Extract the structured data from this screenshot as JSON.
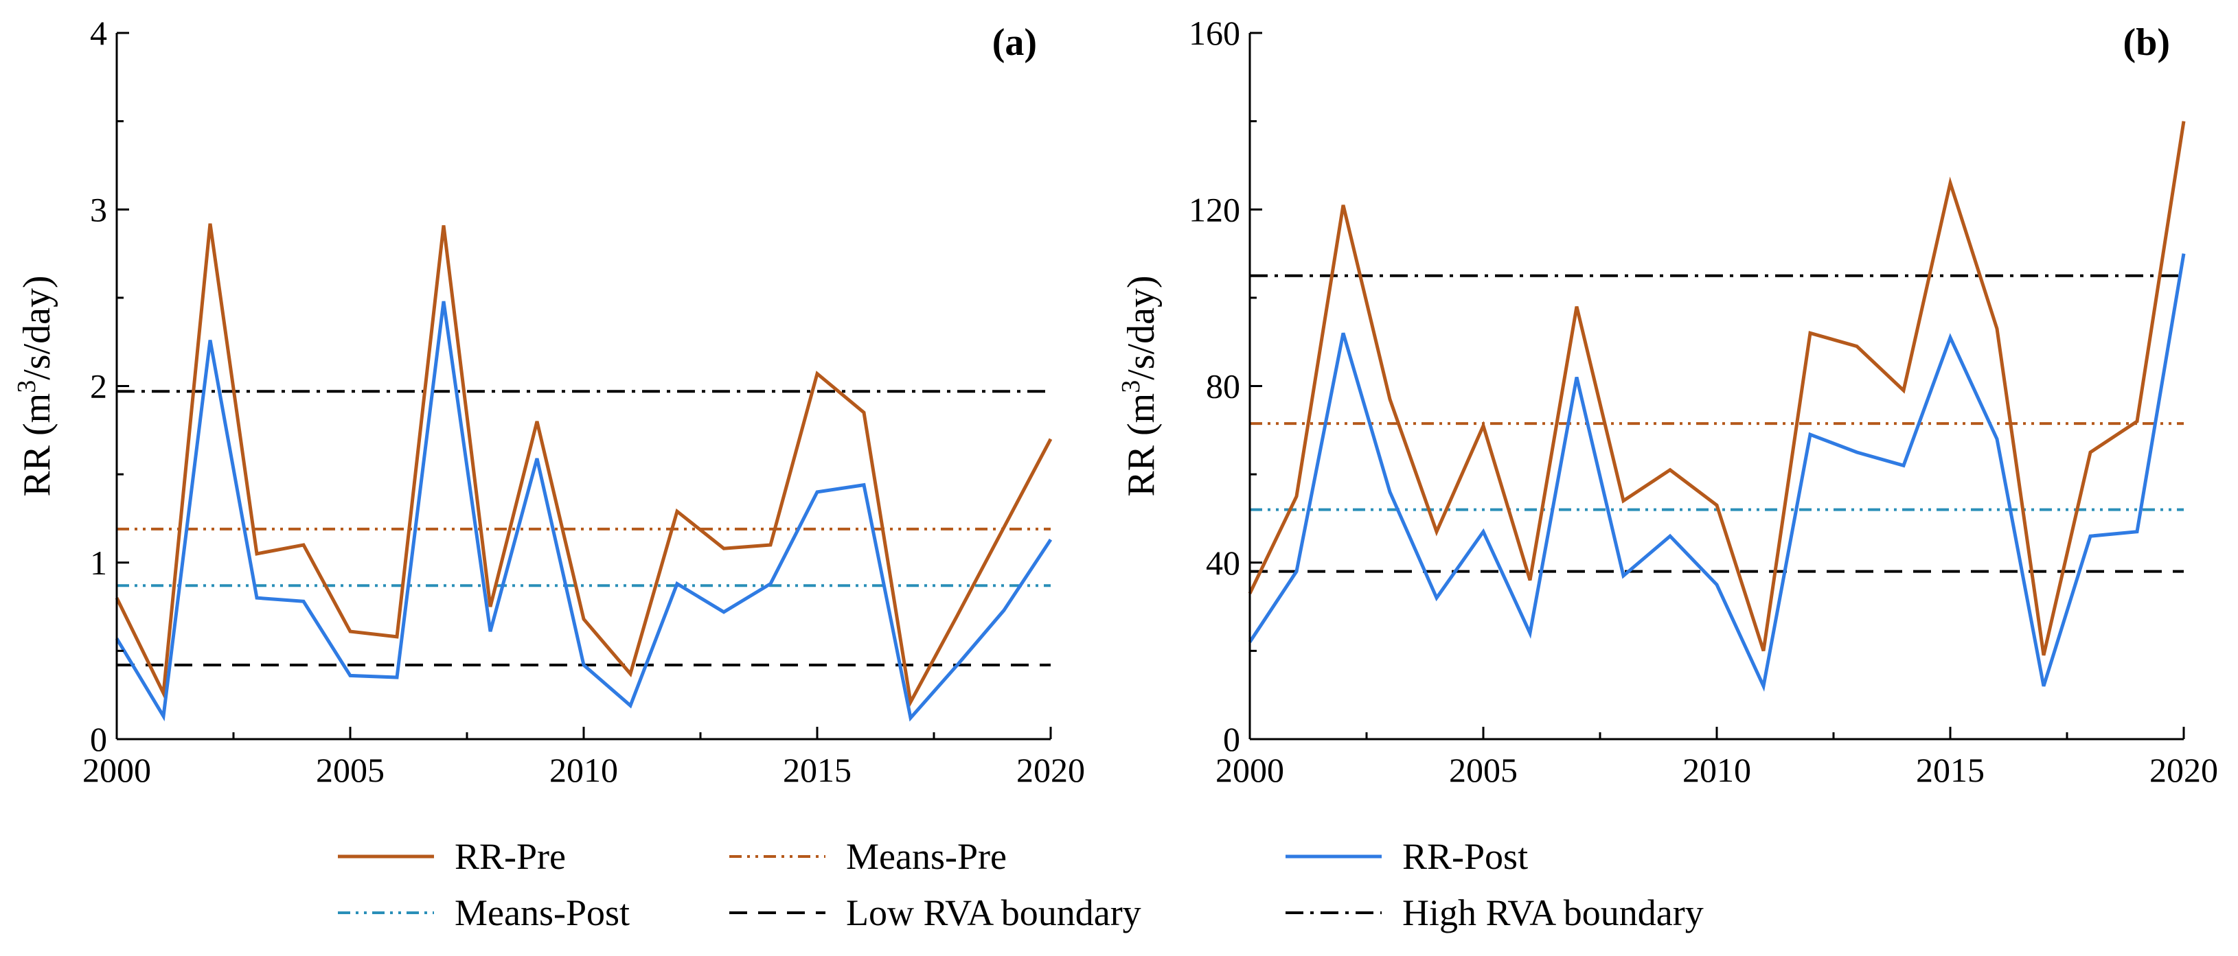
{
  "colors": {
    "rr_pre": "#b5591b",
    "means_pre": "#b5591b",
    "rr_post": "#2f7be3",
    "means_post": "#2a8fb8",
    "low_rva": "#000000",
    "high_rva": "#000000"
  },
  "legend": {
    "rr_pre": "RR-Pre",
    "means_pre": "Means-Pre",
    "rr_post": "RR-Post",
    "means_post": "Means-Post",
    "low_rva": "Low RVA boundary",
    "high_rva": "High RVA boundary"
  },
  "chart_data": [
    {
      "type": "line",
      "panel_label": "(a)",
      "ylabel_main": "RR (m",
      "ylabel_sup": "3",
      "ylabel_rest": "/s/day)",
      "xlim": [
        2000,
        2020
      ],
      "ylim": [
        0,
        4
      ],
      "x_ticks": [
        2000,
        2005,
        2010,
        2015,
        2020
      ],
      "y_ticks": [
        0,
        1,
        2,
        3,
        4
      ],
      "x": [
        2000,
        2001,
        2002,
        2003,
        2004,
        2005,
        2006,
        2007,
        2008,
        2009,
        2010,
        2011,
        2012,
        2013,
        2014,
        2015,
        2016,
        2017,
        2018,
        2019,
        2020
      ],
      "series": [
        {
          "name": "RR-Pre",
          "key": "rr_pre",
          "values": [
            0.8,
            0.26,
            2.92,
            1.05,
            1.1,
            0.61,
            0.58,
            2.91,
            0.75,
            1.8,
            0.68,
            0.37,
            1.29,
            1.08,
            1.1,
            2.07,
            1.85,
            0.21,
            0.7,
            1.2,
            1.7
          ]
        },
        {
          "name": "RR-Post",
          "key": "rr_post",
          "values": [
            0.57,
            0.13,
            2.26,
            0.8,
            0.78,
            0.36,
            0.35,
            2.48,
            0.61,
            1.59,
            0.42,
            0.19,
            0.88,
            0.72,
            0.88,
            1.4,
            1.44,
            0.12,
            0.42,
            0.73,
            1.13
          ]
        }
      ],
      "reference_lines": [
        {
          "name": "Means-Pre",
          "key": "means_pre",
          "value": 1.19
        },
        {
          "name": "Means-Post",
          "key": "means_post",
          "value": 0.87
        },
        {
          "name": "Low RVA boundary",
          "key": "low_rva",
          "value": 0.42
        },
        {
          "name": "High RVA boundary",
          "key": "high_rva",
          "value": 1.97
        }
      ]
    },
    {
      "type": "line",
      "panel_label": "(b)",
      "ylabel_main": "RR (m",
      "ylabel_sup": "3",
      "ylabel_rest": "/s/day)",
      "xlim": [
        2000,
        2020
      ],
      "ylim": [
        0,
        160
      ],
      "x_ticks": [
        2000,
        2005,
        2010,
        2015,
        2020
      ],
      "y_ticks": [
        0,
        40,
        80,
        120,
        160
      ],
      "x": [
        2000,
        2001,
        2002,
        2003,
        2004,
        2005,
        2006,
        2007,
        2008,
        2009,
        2010,
        2011,
        2012,
        2013,
        2014,
        2015,
        2016,
        2017,
        2018,
        2019,
        2020
      ],
      "series": [
        {
          "name": "RR-Pre",
          "key": "rr_pre",
          "values": [
            33,
            55,
            121,
            77,
            47,
            71,
            36,
            98,
            54,
            61,
            53,
            20,
            92,
            89,
            79,
            126,
            93,
            19,
            65,
            72,
            140
          ]
        },
        {
          "name": "RR-Post",
          "key": "rr_post",
          "values": [
            22,
            38,
            92,
            56,
            32,
            47,
            24,
            82,
            37,
            46,
            35,
            12,
            69,
            65,
            62,
            91,
            68,
            12,
            46,
            47,
            110
          ]
        }
      ],
      "reference_lines": [
        {
          "name": "Means-Pre",
          "key": "means_pre",
          "value": 71.5
        },
        {
          "name": "Means-Post",
          "key": "means_post",
          "value": 52
        },
        {
          "name": "Low RVA boundary",
          "key": "low_rva",
          "value": 38
        },
        {
          "name": "High RVA boundary",
          "key": "high_rva",
          "value": 105
        }
      ]
    }
  ]
}
